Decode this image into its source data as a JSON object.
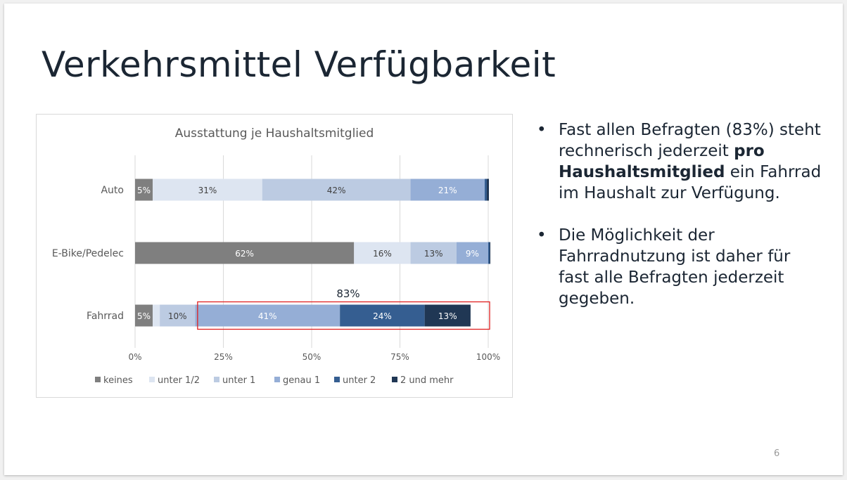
{
  "slide": {
    "title": "Verkehrsmittel Verfügbarkeit",
    "page_number": "6"
  },
  "bullets": [
    {
      "before": "Fast allen Befragten (83%) steht rechnerisch jederzeit ",
      "bold": "pro Haushaltsmitglied",
      "after": " ein Fahrrad im Haushalt zur Verfügung.",
      "marker": "•"
    },
    {
      "before": "Die Möglichkeit der Fahrradnutzung ist daher für fast alle Befragten jederzeit gegeben.",
      "bold": "",
      "after": "",
      "marker": "•"
    }
  ],
  "chart_data": {
    "type": "bar",
    "orientation": "horizontal",
    "stacked": "percent",
    "title": "Ausstattung je Haushaltsmitglied",
    "categories": [
      "Auto",
      "E-Bike/Pedelec",
      "Fahrrad"
    ],
    "series": [
      {
        "name": "keines",
        "color": "#7f7f7f",
        "values": [
          5,
          62,
          5
        ],
        "labels": [
          "5%",
          "62%",
          "5%"
        ],
        "label_color": "#ffffff"
      },
      {
        "name": "unter 1/2",
        "color": "#dde5f1",
        "values": [
          31,
          16,
          2
        ],
        "labels": [
          "31%",
          "16%",
          ""
        ],
        "label_color": "#404040"
      },
      {
        "name": "unter 1",
        "color": "#bccbe2",
        "values": [
          42,
          13,
          10
        ],
        "labels": [
          "42%",
          "13%",
          "10%"
        ],
        "label_color": "#404040"
      },
      {
        "name": "genau 1",
        "color": "#95aed6",
        "values": [
          21,
          9,
          41
        ],
        "labels": [
          "21%",
          "9%",
          "41%"
        ],
        "label_color": "#ffffff"
      },
      {
        "name": "unter 2",
        "color": "#355e91",
        "values": [
          0.6,
          0.4,
          24
        ],
        "labels": [
          "",
          "",
          "24%"
        ],
        "label_color": "#ffffff"
      },
      {
        "name": "2 und mehr",
        "color": "#203754",
        "values": [
          0.6,
          0.2,
          13
        ],
        "labels": [
          "",
          "",
          "13%"
        ],
        "label_color": "#ffffff"
      }
    ],
    "x_ticks": [
      "0%",
      "25%",
      "50%",
      "75%",
      "100%"
    ],
    "xlim": [
      0,
      100
    ],
    "grid": true,
    "legend": "bottom",
    "annotation": {
      "text": "83%",
      "category": "Fahrrad",
      "from": 17.5,
      "to": 100,
      "color": "#e02020"
    }
  }
}
